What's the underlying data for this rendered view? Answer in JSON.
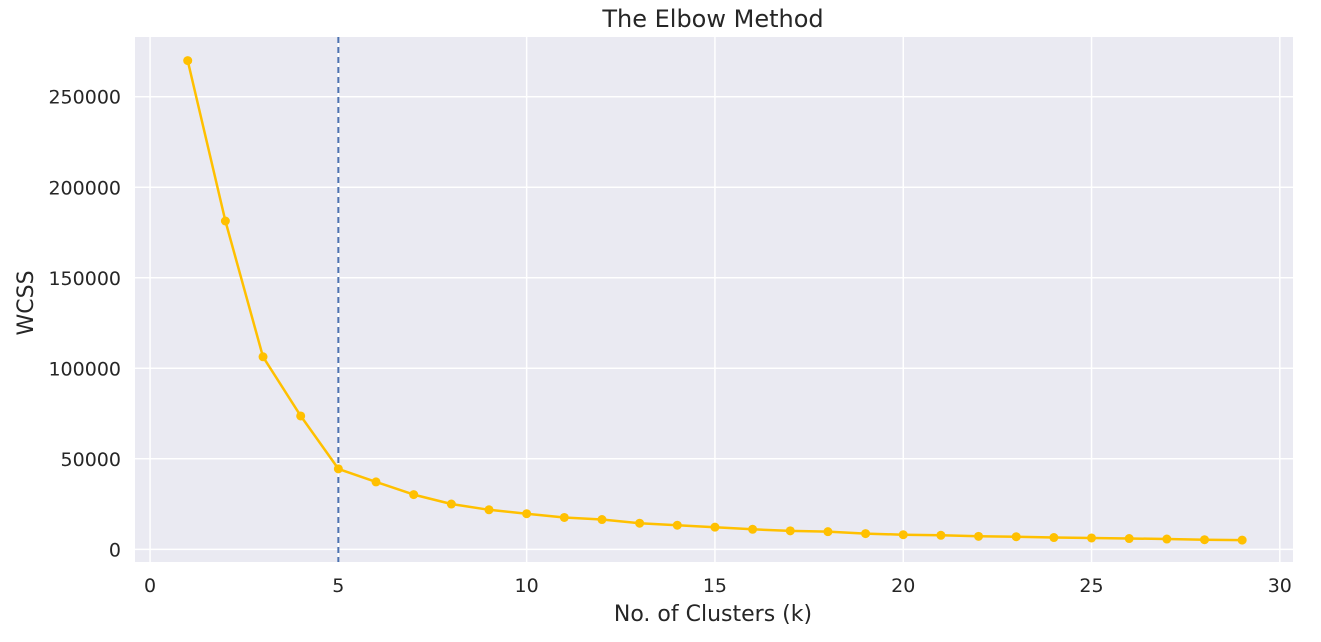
{
  "chart_data": {
    "type": "line",
    "title": "The Elbow Method",
    "xlabel": "No. of Clusters (k)",
    "ylabel": "WCSS",
    "xlim": [
      -0.4,
      30.35
    ],
    "ylim": [
      -7000,
      283000
    ],
    "xticks": [
      0,
      5,
      10,
      15,
      20,
      25,
      30
    ],
    "yticks": [
      0,
      50000,
      100000,
      150000,
      200000,
      250000
    ],
    "xtick_labels": [
      "0",
      "5",
      "10",
      "15",
      "20",
      "25",
      "30"
    ],
    "ytick_labels": [
      "0",
      "50000",
      "100000",
      "150000",
      "200000",
      "250000"
    ],
    "grid": true,
    "vline": {
      "x": 5,
      "style": "dashed",
      "color": "#4c72b0"
    },
    "series": [
      {
        "color": "#ffc000",
        "x": [
          1,
          2,
          3,
          4,
          5,
          6,
          7,
          8,
          9,
          10,
          11,
          12,
          13,
          14,
          15,
          16,
          17,
          18,
          19,
          20,
          21,
          22,
          23,
          24,
          25,
          26,
          27,
          28,
          29
        ],
        "y": [
          269981,
          181364,
          106348,
          73679,
          44448,
          37234,
          30242,
          25011,
          21851,
          19658,
          17601,
          16462,
          14425,
          13304,
          12247,
          11080,
          10202,
          9766,
          8700,
          8076,
          7743,
          7173,
          6953,
          6520,
          6270,
          5971,
          5695,
          5313,
          5117
        ]
      }
    ],
    "colors": {
      "plot_background": "#eaeaf2",
      "grid": "#ffffff",
      "text": "#262626"
    }
  }
}
